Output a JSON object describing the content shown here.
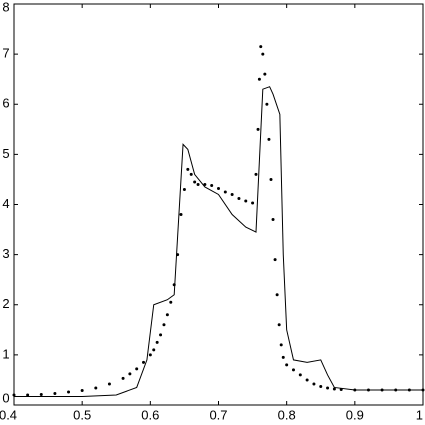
{
  "chart_data": {
    "type": "line",
    "xlim": [
      0.4,
      1
    ],
    "ylim": [
      0,
      8
    ],
    "xticks": [
      0.4,
      0.5,
      0.6,
      0.7,
      0.8,
      0.9,
      1
    ],
    "yticks": [
      0,
      1,
      2,
      3,
      4,
      5,
      6,
      7,
      8
    ],
    "series": [
      {
        "color": "#000000",
        "line_style": "solid",
        "x": [
          0.4,
          0.5,
          0.55,
          0.58,
          0.595,
          0.605,
          0.625,
          0.635,
          0.648,
          0.655,
          0.665,
          0.68,
          0.7,
          0.72,
          0.74,
          0.755,
          0.765,
          0.775,
          0.78,
          0.79,
          0.795,
          0.8,
          0.81,
          0.83,
          0.85,
          0.86,
          0.87,
          0.9,
          1
        ],
        "values": [
          0.17,
          0.17,
          0.2,
          0.35,
          0.9,
          2.0,
          2.1,
          2.2,
          5.2,
          5.1,
          4.6,
          4.35,
          4.2,
          3.8,
          3.55,
          3.45,
          6.3,
          6.35,
          6.2,
          5.8,
          3.0,
          1.5,
          0.9,
          0.85,
          0.9,
          0.6,
          0.35,
          0.3,
          0.3
        ]
      },
      {
        "color": "#000000",
        "line_style": "dotted",
        "x": [
          0.4,
          0.42,
          0.44,
          0.46,
          0.48,
          0.5,
          0.52,
          0.54,
          0.56,
          0.57,
          0.58,
          0.59,
          0.6,
          0.605,
          0.61,
          0.615,
          0.62,
          0.625,
          0.63,
          0.635,
          0.64,
          0.645,
          0.65,
          0.655,
          0.66,
          0.665,
          0.67,
          0.68,
          0.69,
          0.7,
          0.71,
          0.72,
          0.73,
          0.74,
          0.75,
          0.755,
          0.758,
          0.76,
          0.762,
          0.765,
          0.768,
          0.771,
          0.774,
          0.777,
          0.78,
          0.783,
          0.786,
          0.789,
          0.792,
          0.795,
          0.8,
          0.81,
          0.82,
          0.83,
          0.84,
          0.85,
          0.86,
          0.87,
          0.88,
          0.9,
          0.92,
          0.94,
          0.96,
          0.98,
          1
        ],
        "values": [
          0.2,
          0.2,
          0.21,
          0.23,
          0.26,
          0.29,
          0.34,
          0.42,
          0.53,
          0.62,
          0.72,
          0.85,
          1.0,
          1.1,
          1.25,
          1.4,
          1.6,
          1.8,
          2.05,
          2.4,
          3.0,
          3.8,
          4.3,
          4.7,
          4.6,
          4.45,
          4.4,
          4.4,
          4.38,
          4.32,
          4.25,
          4.2,
          4.12,
          4.07,
          4.03,
          4.6,
          5.5,
          6.5,
          7.15,
          7.0,
          6.6,
          6.0,
          5.3,
          4.5,
          3.7,
          2.9,
          2.2,
          1.6,
          1.2,
          0.95,
          0.8,
          0.7,
          0.6,
          0.5,
          0.42,
          0.37,
          0.34,
          0.32,
          0.31,
          0.3,
          0.3,
          0.3,
          0.3,
          0.3,
          0.3
        ]
      }
    ]
  }
}
